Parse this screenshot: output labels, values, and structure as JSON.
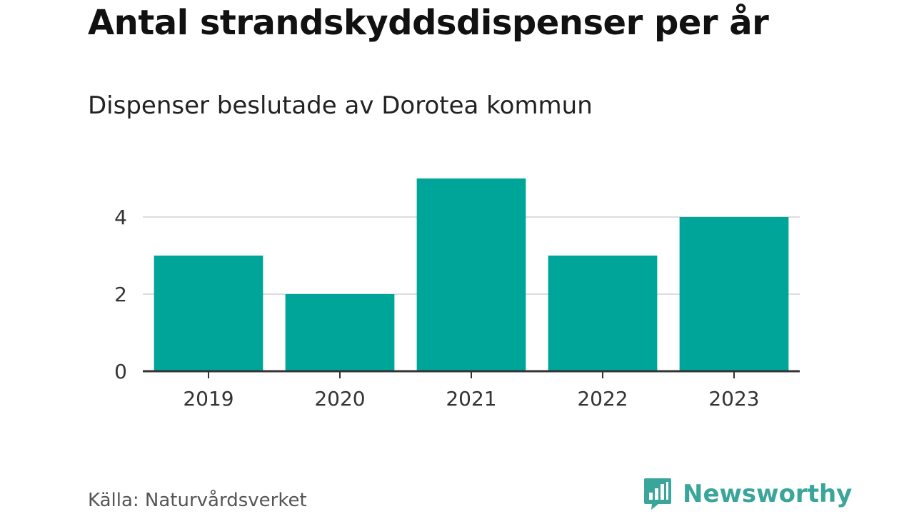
{
  "title": "Antal strandskyddsdispenser per år",
  "subtitle": "Dispenser beslutade av Dorotea kommun",
  "source": "Källa: Naturvårdsverket",
  "brand": {
    "name": "Newsworthy",
    "icon": "bar-chart-speech-bubble-icon",
    "color": "#3aa59a"
  },
  "colors": {
    "bar": "#00a59a",
    "grid": "#dddddd",
    "axis": "#333333",
    "tick_text": "#333333"
  },
  "chart_data": {
    "type": "bar",
    "categories": [
      "2019",
      "2020",
      "2021",
      "2022",
      "2023"
    ],
    "values": [
      3,
      2,
      5,
      3,
      4
    ],
    "title": "Antal strandskyddsdispenser per år",
    "subtitle": "Dispenser beslutade av Dorotea kommun",
    "xlabel": "",
    "ylabel": "",
    "ylim": [
      0,
      5
    ],
    "yticks": [
      0,
      2,
      4
    ],
    "grid": true,
    "legend": "none"
  }
}
